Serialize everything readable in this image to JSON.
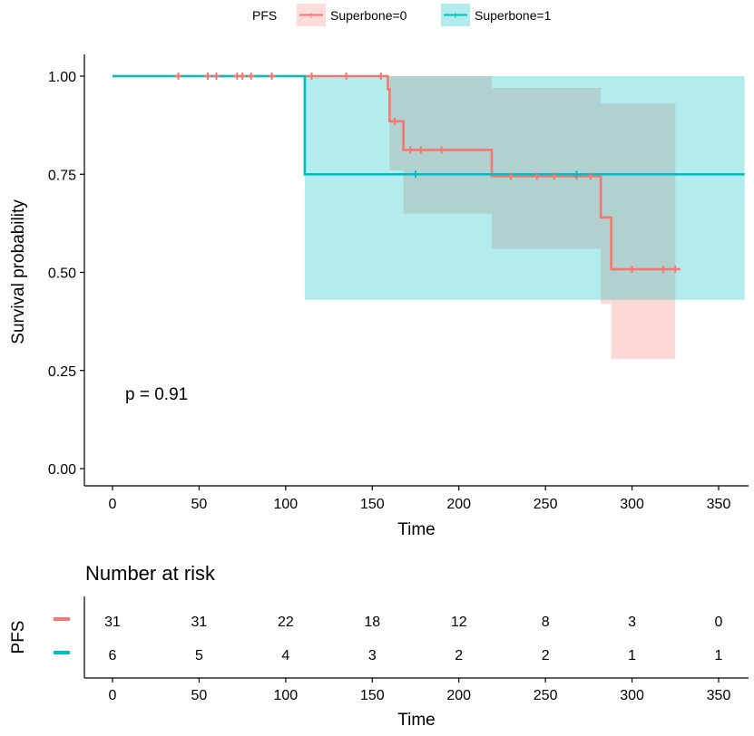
{
  "colors": {
    "group0": "#F8766D",
    "group1": "#00BFC4",
    "axis": "#000000",
    "text": "#000000"
  },
  "legend": {
    "title": "PFS",
    "items": [
      "Superbone=0",
      "Superbone=1"
    ]
  },
  "risk_table": {
    "title": "Number at risk",
    "ylabel": "PFS",
    "xlabel": "Time",
    "rows": [
      {
        "group": "Superbone=0",
        "counts": [
          31,
          31,
          22,
          18,
          12,
          8,
          3,
          0
        ]
      },
      {
        "group": "Superbone=1",
        "counts": [
          6,
          5,
          4,
          3,
          2,
          2,
          1,
          1
        ]
      }
    ]
  },
  "chart_data": {
    "type": "line",
    "xlabel": "Time",
    "ylabel": "Survival probability",
    "xlim": [
      0,
      365
    ],
    "ylim": [
      0,
      1
    ],
    "xticks": [
      0,
      50,
      100,
      150,
      200,
      250,
      300,
      350
    ],
    "yticks": [
      0.0,
      0.25,
      0.5,
      0.75,
      1.0
    ],
    "ytick_labels": [
      "0.00",
      "0.25",
      "0.50",
      "0.75",
      "1.00"
    ],
    "grid": false,
    "legend_position": "top",
    "annotation": "p = 0.91",
    "series": [
      {
        "name": "Superbone=0",
        "color": "#F8766D",
        "steps": [
          {
            "x": 0,
            "y": 1.0
          },
          {
            "x": 159,
            "y": 0.967
          },
          {
            "x": 160,
            "y": 0.885
          },
          {
            "x": 168,
            "y": 0.812
          },
          {
            "x": 219,
            "y": 0.745
          },
          {
            "x": 282,
            "y": 0.64
          },
          {
            "x": 288,
            "y": 0.508
          },
          {
            "x": 328,
            "y": 0.508
          }
        ],
        "ci": [
          {
            "x": 0,
            "lo": 1.0,
            "hi": 1.0
          },
          {
            "x": 159,
            "lo": 1.0,
            "hi": 1.0
          },
          {
            "x": 160,
            "lo": 0.76,
            "hi": 1.0
          },
          {
            "x": 168,
            "lo": 0.65,
            "hi": 1.0
          },
          {
            "x": 219,
            "lo": 0.56,
            "hi": 0.97
          },
          {
            "x": 282,
            "lo": 0.42,
            "hi": 0.93
          },
          {
            "x": 288,
            "lo": 0.28,
            "hi": 0.93
          },
          {
            "x": 325,
            "lo": 0.28,
            "hi": 0.93
          }
        ],
        "censored": [
          38,
          55,
          60,
          72,
          75,
          80,
          92,
          115,
          135,
          155,
          163,
          172,
          178,
          190,
          230,
          245,
          255,
          268,
          276,
          300,
          318,
          325
        ]
      },
      {
        "name": "Superbone=1",
        "color": "#00BFC4",
        "steps": [
          {
            "x": 0,
            "y": 1.0
          },
          {
            "x": 111,
            "y": 0.75
          },
          {
            "x": 365,
            "y": 0.75
          }
        ],
        "ci": [
          {
            "x": 0,
            "lo": 1.0,
            "hi": 1.0
          },
          {
            "x": 111,
            "lo": 0.43,
            "hi": 1.0
          },
          {
            "x": 365,
            "lo": 0.43,
            "hi": 1.0
          }
        ],
        "censored": [
          175,
          268
        ]
      }
    ]
  }
}
